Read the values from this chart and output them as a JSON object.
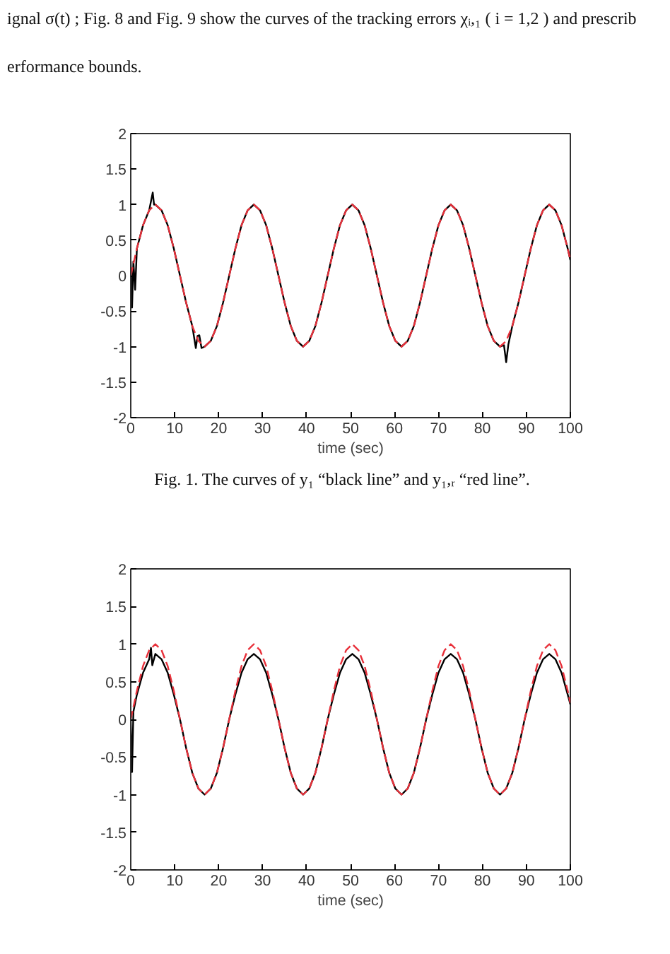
{
  "chart_data": [
    {
      "type": "line",
      "annotations": [
        "ignal σ(t) ; Fig. 8 and Fig. 9 show the curves of the tracking errors  χᵢ,₁ ( i = 1,2 ) and prescrib",
        "erformance bounds.",
        "Fig. 1. The curves of  y₁  “black line” and  y₁,ᵣ  “red line”."
      ],
      "xlabel": "time (sec)",
      "xlim": [
        0,
        100
      ],
      "xticks": [
        0,
        10,
        20,
        30,
        40,
        50,
        60,
        70,
        80,
        90,
        100
      ],
      "ylim": [
        -2,
        2
      ],
      "yticks": [
        -2,
        -1.5,
        -1,
        -0.5,
        0,
        0.5,
        1,
        1.5,
        2
      ],
      "x": [
        0,
        1.4,
        2.8,
        4.2,
        5.6,
        7,
        8.4,
        9.8,
        11.2,
        12.6,
        14,
        15.4,
        16.8,
        18.2,
        19.6,
        21,
        22.4,
        23.8,
        25.2,
        26.6,
        28,
        29.4,
        30.8,
        32.2,
        33.6,
        35,
        36.4,
        37.8,
        39.2,
        40.6,
        42,
        43.4,
        44.8,
        46.2,
        47.6,
        49,
        50.4,
        51.8,
        53.2,
        54.6,
        56,
        57.4,
        58.8,
        60.2,
        61.6,
        63,
        64.4,
        65.8,
        67.2,
        68.6,
        70,
        71.4,
        72.8,
        74.2,
        75.6,
        77,
        78.4,
        79.8,
        81.2,
        82.6,
        84,
        85.4,
        86.8,
        88.2,
        89.6,
        91,
        92.4,
        93.8,
        95.2,
        96.6,
        98,
        99.4,
        100
      ],
      "series": [
        {
          "color": "#000000",
          "line_style": "solid",
          "x": [
            0,
            0.3,
            0.6,
            1,
            1.4,
            2.8,
            4.2,
            5,
            5.3,
            5.6,
            7,
            8.4,
            9.8,
            11.2,
            12.6,
            14,
            14.8,
            15.2,
            15.6,
            16.1,
            16.8,
            18.2,
            19.6,
            21,
            22.4,
            23.8,
            25.2,
            26.6,
            28,
            29.4,
            30.8,
            32.2,
            33.6,
            35,
            36.4,
            37.8,
            39.2,
            40.6,
            42,
            43.4,
            44.8,
            46.2,
            47.6,
            49,
            50.4,
            51.8,
            53.2,
            54.6,
            56,
            57.4,
            58.8,
            60.2,
            61.6,
            63,
            64.4,
            65.8,
            67.2,
            68.6,
            70,
            71.4,
            72.8,
            74.2,
            75.6,
            77,
            78.4,
            79.8,
            81.2,
            82.6,
            84,
            84.9,
            85.4,
            85.9,
            86.8,
            88.2,
            89.6,
            91,
            92.4,
            93.8,
            95.2,
            96.6,
            98,
            99.4,
            100
          ],
          "values": [
            0.2,
            -0.45,
            0.2,
            -0.2,
            0.38,
            0.71,
            0.92,
            1.17,
            1,
            1,
            0.92,
            0.71,
            0.38,
            0,
            -0.38,
            -0.71,
            -1.02,
            -0.85,
            -0.84,
            -1.02,
            -1,
            -0.92,
            -0.71,
            -0.38,
            0,
            0.38,
            0.71,
            0.92,
            1,
            0.92,
            0.71,
            0.38,
            0,
            -0.38,
            -0.71,
            -0.92,
            -1,
            -0.92,
            -0.71,
            -0.38,
            0,
            0.38,
            0.71,
            0.92,
            1,
            0.92,
            0.71,
            0.38,
            0,
            -0.38,
            -0.71,
            -0.92,
            -1,
            -0.92,
            -0.71,
            -0.38,
            0,
            0.38,
            0.71,
            0.92,
            1,
            0.92,
            0.71,
            0.38,
            0,
            -0.38,
            -0.71,
            -0.92,
            -1,
            -0.98,
            -1.22,
            -0.97,
            -0.71,
            -0.38,
            0,
            0.38,
            0.71,
            0.92,
            1,
            0.92,
            0.71,
            0.38,
            0.22
          ]
        },
        {
          "color": "#e8303a",
          "line_style": "dashed",
          "values": [
            0,
            0.38,
            0.71,
            0.92,
            1,
            0.92,
            0.71,
            0.38,
            0,
            -0.38,
            -0.71,
            -0.92,
            -1,
            -0.92,
            -0.71,
            -0.38,
            0,
            0.38,
            0.71,
            0.92,
            1,
            0.92,
            0.71,
            0.38,
            0,
            -0.38,
            -0.71,
            -0.92,
            -1,
            -0.92,
            -0.71,
            -0.38,
            0,
            0.38,
            0.71,
            0.92,
            1,
            0.92,
            0.71,
            0.38,
            0,
            -0.38,
            -0.71,
            -0.92,
            -1,
            -0.92,
            -0.71,
            -0.38,
            0,
            0.38,
            0.71,
            0.92,
            1,
            0.92,
            0.71,
            0.38,
            0,
            -0.38,
            -0.71,
            -0.92,
            -1,
            -0.92,
            -0.71,
            -0.38,
            0,
            0.38,
            0.71,
            0.92,
            1,
            0.92,
            0.71,
            0.38,
            0.22
          ]
        }
      ]
    },
    {
      "type": "line",
      "xlabel": "time (sec)",
      "xlim": [
        0,
        100
      ],
      "xticks": [
        0,
        10,
        20,
        30,
        40,
        50,
        60,
        70,
        80,
        90,
        100
      ],
      "ylim": [
        -2,
        2
      ],
      "yticks": [
        -2,
        -1.5,
        -1,
        -0.5,
        0,
        0.5,
        1,
        1.5,
        2
      ],
      "x": [
        0,
        1.4,
        2.8,
        4.2,
        5.6,
        7,
        8.4,
        9.8,
        11.2,
        12.6,
        14,
        15.4,
        16.8,
        18.2,
        19.6,
        21,
        22.4,
        23.8,
        25.2,
        26.6,
        28,
        29.4,
        30.8,
        32.2,
        33.6,
        35,
        36.4,
        37.8,
        39.2,
        40.6,
        42,
        43.4,
        44.8,
        46.2,
        47.6,
        49,
        50.4,
        51.8,
        53.2,
        54.6,
        56,
        57.4,
        58.8,
        60.2,
        61.6,
        63,
        64.4,
        65.8,
        67.2,
        68.6,
        70,
        71.4,
        72.8,
        74.2,
        75.6,
        77,
        78.4,
        79.8,
        81.2,
        82.6,
        84,
        85.4,
        86.8,
        88.2,
        89.6,
        91,
        92.4,
        93.8,
        95.2,
        96.6,
        98,
        99.4,
        100
      ],
      "series": [
        {
          "color": "#000000",
          "line_style": "solid",
          "x": [
            0,
            0.3,
            0.6,
            1.4,
            2.8,
            4.2,
            4.6,
            4.9,
            5.6,
            7,
            8.4,
            9.8,
            11.2,
            12.6,
            14,
            15.4,
            16.8,
            18.2,
            19.6,
            21,
            22.4,
            23.8,
            25.2,
            26.6,
            28,
            29.4,
            30.8,
            32.2,
            33.6,
            35,
            36.4,
            37.8,
            39.2,
            40.6,
            42,
            43.4,
            44.8,
            46.2,
            47.6,
            49,
            50.4,
            51.8,
            53.2,
            54.6,
            56,
            57.4,
            58.8,
            60.2,
            61.6,
            63,
            64.4,
            65.8,
            67.2,
            68.6,
            70,
            71.4,
            72.8,
            74.2,
            75.6,
            77,
            78.4,
            79.8,
            81.2,
            82.6,
            84,
            85.4,
            86.8,
            88.2,
            89.6,
            91,
            92.4,
            93.8,
            95.2,
            96.6,
            98,
            99.4,
            100
          ],
          "values": [
            0,
            -0.7,
            0.1,
            0.33,
            0.62,
            0.8,
            0.95,
            0.72,
            0.87,
            0.8,
            0.62,
            0.33,
            0,
            -0.38,
            -0.71,
            -0.92,
            -1,
            -0.92,
            -0.71,
            -0.38,
            0,
            0.33,
            0.62,
            0.8,
            0.87,
            0.8,
            0.62,
            0.33,
            0,
            -0.38,
            -0.71,
            -0.92,
            -1,
            -0.92,
            -0.71,
            -0.38,
            0,
            0.33,
            0.62,
            0.8,
            0.87,
            0.8,
            0.62,
            0.33,
            0,
            -0.38,
            -0.71,
            -0.92,
            -1,
            -0.92,
            -0.71,
            -0.38,
            0,
            0.33,
            0.62,
            0.8,
            0.87,
            0.8,
            0.62,
            0.33,
            0,
            -0.38,
            -0.71,
            -0.92,
            -1,
            -0.92,
            -0.71,
            -0.38,
            0,
            0.33,
            0.62,
            0.8,
            0.87,
            0.8,
            0.62,
            0.33,
            0.2
          ]
        },
        {
          "color": "#e8303a",
          "line_style": "dashed",
          "values": [
            0,
            0.38,
            0.71,
            0.92,
            1,
            0.92,
            0.71,
            0.38,
            0,
            -0.38,
            -0.71,
            -0.92,
            -1,
            -0.92,
            -0.71,
            -0.38,
            0,
            0.38,
            0.71,
            0.92,
            1,
            0.92,
            0.71,
            0.38,
            0,
            -0.38,
            -0.71,
            -0.92,
            -1,
            -0.92,
            -0.71,
            -0.38,
            0,
            0.38,
            0.71,
            0.92,
            1,
            0.92,
            0.71,
            0.38,
            0,
            -0.38,
            -0.71,
            -0.92,
            -1,
            -0.92,
            -0.71,
            -0.38,
            0,
            0.38,
            0.71,
            0.92,
            1,
            0.92,
            0.71,
            0.38,
            0,
            -0.38,
            -0.71,
            -0.92,
            -1,
            -0.92,
            -0.71,
            -0.38,
            0,
            0.38,
            0.71,
            0.92,
            1,
            0.92,
            0.71,
            0.38,
            0.22
          ]
        }
      ]
    }
  ]
}
